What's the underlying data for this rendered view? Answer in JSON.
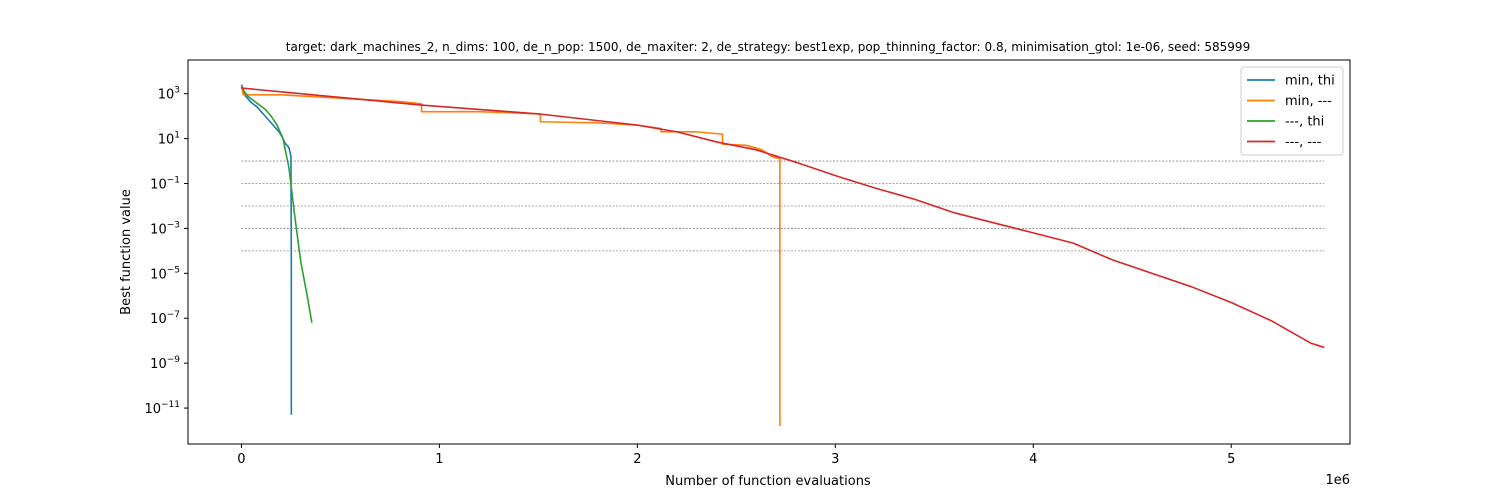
{
  "chart_data": {
    "type": "line",
    "title": "target: dark_machines_2, n_dims: 100, de_n_pop: 1500, de_maxiter: 2, de_strategy: best1exp, pop_thinning_factor: 0.8, minimisation_gtol: 1e-06, seed: 585999",
    "xlabel": "Number of function evaluations",
    "ylabel": "Best function value",
    "x_offset_label": "1e6",
    "x_scale": "linear",
    "y_scale": "log",
    "xlim": [
      -0.27,
      5.6
    ],
    "ylim_log10": [
      -12.6,
      4.5
    ],
    "x_ticks": [
      {
        "value": 0,
        "label": "0"
      },
      {
        "value": 1,
        "label": "1"
      },
      {
        "value": 2,
        "label": "2"
      },
      {
        "value": 3,
        "label": "3"
      },
      {
        "value": 4,
        "label": "4"
      },
      {
        "value": 5,
        "label": "5"
      }
    ],
    "y_ticks": [
      {
        "exp": 3,
        "base": "10",
        "sup": "3"
      },
      {
        "exp": 1,
        "base": "10",
        "sup": "1"
      },
      {
        "exp": -1,
        "base": "10",
        "sup": "−1"
      },
      {
        "exp": -3,
        "base": "10",
        "sup": "−3"
      },
      {
        "exp": -5,
        "base": "10",
        "sup": "−5"
      },
      {
        "exp": -7,
        "base": "10",
        "sup": "−7"
      },
      {
        "exp": -9,
        "base": "10",
        "sup": "−9"
      },
      {
        "exp": -11,
        "base": "10",
        "sup": "−11"
      }
    ],
    "reference_lines_log10": [
      0,
      -1,
      -2,
      -3,
      -4
    ],
    "reference_lines_xrange": [
      0,
      5.47
    ],
    "grid": false,
    "legend_position": "top-right",
    "series": [
      {
        "name": "min, thi",
        "color": "#1f77b4",
        "points": [
          [
            0.0,
            3.4
          ],
          [
            0.02,
            2.9
          ],
          [
            0.05,
            2.6
          ],
          [
            0.08,
            2.4
          ],
          [
            0.11,
            2.1
          ],
          [
            0.14,
            1.8
          ],
          [
            0.17,
            1.5
          ],
          [
            0.19,
            1.3
          ],
          [
            0.21,
            1.0
          ],
          [
            0.22,
            0.8
          ],
          [
            0.24,
            0.6
          ],
          [
            0.25,
            0.2
          ],
          [
            0.251,
            -2.0
          ],
          [
            0.252,
            -5.0
          ],
          [
            0.252,
            -11.3
          ]
        ]
      },
      {
        "name": "min, ---",
        "color": "#ff7f0e",
        "points": [
          [
            0.0,
            3.3
          ],
          [
            0.01,
            2.95
          ],
          [
            0.2,
            2.95
          ],
          [
            0.4,
            2.85
          ],
          [
            0.6,
            2.75
          ],
          [
            0.8,
            2.65
          ],
          [
            0.91,
            2.55
          ],
          [
            0.91,
            2.2
          ],
          [
            1.2,
            2.2
          ],
          [
            1.51,
            2.1
          ],
          [
            1.51,
            1.75
          ],
          [
            1.8,
            1.7
          ],
          [
            2.0,
            1.6
          ],
          [
            2.12,
            1.45
          ],
          [
            2.12,
            1.3
          ],
          [
            2.3,
            1.3
          ],
          [
            2.43,
            1.2
          ],
          [
            2.43,
            0.75
          ],
          [
            2.55,
            0.7
          ],
          [
            2.63,
            0.5
          ],
          [
            2.68,
            0.2
          ],
          [
            2.72,
            0.1
          ],
          [
            2.72,
            -5.0
          ],
          [
            2.72,
            -11.8
          ]
        ]
      },
      {
        "name": "---, thi",
        "color": "#2ca02c",
        "points": [
          [
            0.0,
            3.3
          ],
          [
            0.03,
            2.9
          ],
          [
            0.06,
            2.7
          ],
          [
            0.09,
            2.5
          ],
          [
            0.12,
            2.3
          ],
          [
            0.15,
            2.0
          ],
          [
            0.18,
            1.6
          ],
          [
            0.21,
            1.0
          ],
          [
            0.24,
            -0.3
          ],
          [
            0.27,
            -2.5
          ],
          [
            0.3,
            -4.5
          ],
          [
            0.33,
            -5.9
          ],
          [
            0.356,
            -7.2
          ]
        ]
      },
      {
        "name": "---, ---",
        "color": "#d62728",
        "points": [
          [
            0.0,
            3.25
          ],
          [
            0.3,
            3.0
          ],
          [
            0.6,
            2.75
          ],
          [
            0.9,
            2.5
          ],
          [
            1.2,
            2.3
          ],
          [
            1.5,
            2.1
          ],
          [
            1.8,
            1.8
          ],
          [
            2.0,
            1.6
          ],
          [
            2.2,
            1.3
          ],
          [
            2.4,
            0.85
          ],
          [
            2.6,
            0.5
          ],
          [
            2.8,
            -0.05
          ],
          [
            3.0,
            -0.65
          ],
          [
            3.2,
            -1.2
          ],
          [
            3.4,
            -1.7
          ],
          [
            3.6,
            -2.3
          ],
          [
            3.8,
            -2.75
          ],
          [
            4.0,
            -3.2
          ],
          [
            4.2,
            -3.65
          ],
          [
            4.4,
            -4.4
          ],
          [
            4.6,
            -5.0
          ],
          [
            4.8,
            -5.6
          ],
          [
            5.0,
            -6.3
          ],
          [
            5.2,
            -7.1
          ],
          [
            5.4,
            -8.1
          ],
          [
            5.47,
            -8.3
          ]
        ]
      }
    ]
  }
}
